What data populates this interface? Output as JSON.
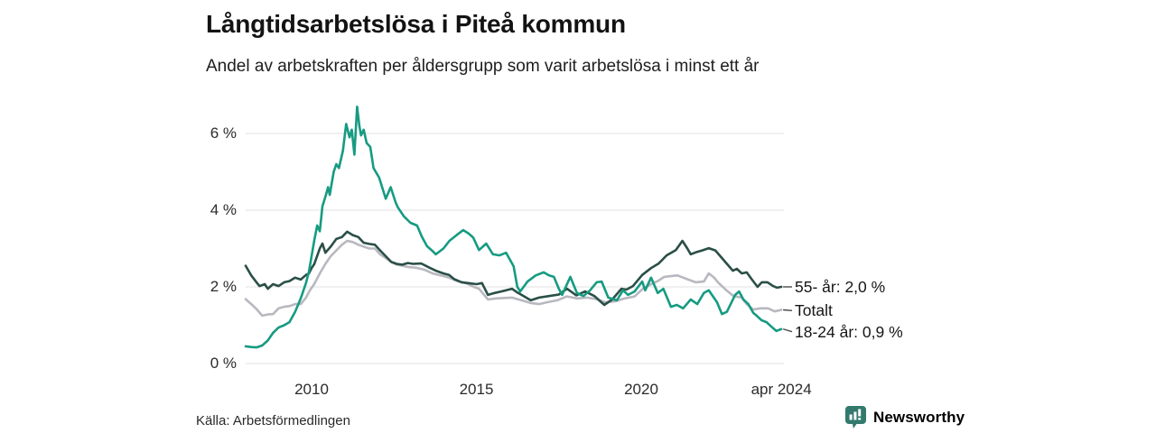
{
  "header": {
    "title": "Långtidsarbetslösa i Piteå kommun",
    "subtitle": "Andel av arbetskraften per åldersgrupp som varit arbetslösa i minst ett år"
  },
  "chart_data": {
    "type": "line",
    "title": "Långtidsarbetslösa i Piteå kommun",
    "subtitle": "Andel av arbetskraften per åldersgrupp som varit arbetslösa i minst ett år",
    "unit": "% av arbetskraften",
    "grid": "horizontal",
    "legend_position": "right-of-line-ends",
    "x_axis": {
      "range": [
        2008.0,
        2024.33
      ],
      "ticks": [
        {
          "label": "2010",
          "t": 2010.0
        },
        {
          "label": "2015",
          "t": 2015.0
        },
        {
          "label": "2020",
          "t": 2020.0
        },
        {
          "label": "apr 2024",
          "t": 2024.25
        }
      ]
    },
    "y_axis": {
      "range": [
        0,
        6.9
      ],
      "ticks": [
        {
          "label": "0 %",
          "v": 0
        },
        {
          "label": "2 %",
          "v": 2
        },
        {
          "label": "4 %",
          "v": 4
        },
        {
          "label": "6 %",
          "v": 6
        }
      ]
    },
    "series": [
      {
        "name": "Totalt",
        "color": "#b8b8c0",
        "end_label": "Totalt",
        "end_value": 1.4,
        "label_anchor_value": 1.38,
        "points": [
          [
            2008.0,
            1.68
          ],
          [
            2008.17,
            1.55
          ],
          [
            2008.33,
            1.42
          ],
          [
            2008.5,
            1.25
          ],
          [
            2008.67,
            1.28
          ],
          [
            2008.83,
            1.29
          ],
          [
            2009.0,
            1.44
          ],
          [
            2009.17,
            1.48
          ],
          [
            2009.33,
            1.5
          ],
          [
            2009.5,
            1.55
          ],
          [
            2009.67,
            1.55
          ],
          [
            2009.83,
            1.72
          ],
          [
            2009.95,
            1.91
          ],
          [
            2010.08,
            2.07
          ],
          [
            2010.25,
            2.35
          ],
          [
            2010.42,
            2.6
          ],
          [
            2010.58,
            2.8
          ],
          [
            2010.75,
            2.95
          ],
          [
            2010.92,
            3.1
          ],
          [
            2011.08,
            3.2
          ],
          [
            2011.25,
            3.17
          ],
          [
            2011.42,
            3.1
          ],
          [
            2011.58,
            3.05
          ],
          [
            2011.75,
            3.0
          ],
          [
            2011.92,
            3.0
          ],
          [
            2012.08,
            2.85
          ],
          [
            2012.25,
            2.75
          ],
          [
            2012.42,
            2.65
          ],
          [
            2012.58,
            2.58
          ],
          [
            2012.75,
            2.55
          ],
          [
            2012.92,
            2.52
          ],
          [
            2013.17,
            2.5
          ],
          [
            2013.42,
            2.45
          ],
          [
            2013.67,
            2.35
          ],
          [
            2013.92,
            2.3
          ],
          [
            2014.17,
            2.24
          ],
          [
            2014.42,
            2.15
          ],
          [
            2014.67,
            2.1
          ],
          [
            2014.92,
            2.0
          ],
          [
            2015.08,
            1.95
          ],
          [
            2015.35,
            1.67
          ],
          [
            2015.6,
            1.7
          ],
          [
            2015.85,
            1.71
          ],
          [
            2016.08,
            1.72
          ],
          [
            2016.37,
            1.65
          ],
          [
            2016.65,
            1.58
          ],
          [
            2016.9,
            1.55
          ],
          [
            2017.15,
            1.6
          ],
          [
            2017.45,
            1.65
          ],
          [
            2017.75,
            1.75
          ],
          [
            2018.05,
            1.7
          ],
          [
            2018.35,
            1.72
          ],
          [
            2018.65,
            1.68
          ],
          [
            2018.9,
            1.6
          ],
          [
            2019.2,
            1.62
          ],
          [
            2019.5,
            1.7
          ],
          [
            2019.8,
            1.75
          ],
          [
            2020.05,
            1.95
          ],
          [
            2020.3,
            2.07
          ],
          [
            2020.5,
            2.15
          ],
          [
            2020.7,
            2.26
          ],
          [
            2020.9,
            2.28
          ],
          [
            2021.1,
            2.3
          ],
          [
            2021.4,
            2.2
          ],
          [
            2021.65,
            2.12
          ],
          [
            2021.9,
            2.14
          ],
          [
            2022.05,
            2.35
          ],
          [
            2022.2,
            2.25
          ],
          [
            2022.35,
            2.1
          ],
          [
            2022.6,
            1.9
          ],
          [
            2022.8,
            1.76
          ],
          [
            2023.05,
            1.72
          ],
          [
            2023.2,
            1.55
          ],
          [
            2023.4,
            1.41
          ],
          [
            2023.6,
            1.44
          ],
          [
            2023.85,
            1.44
          ],
          [
            2024.05,
            1.36
          ],
          [
            2024.25,
            1.4
          ]
        ]
      },
      {
        "name": "55- år",
        "color": "#2a4f47",
        "end_label": "55- år: 2,0 %",
        "end_value": 2.0,
        "label_anchor_value": 2.0,
        "points": [
          [
            2008.0,
            2.55
          ],
          [
            2008.17,
            2.3
          ],
          [
            2008.33,
            2.12
          ],
          [
            2008.42,
            2.02
          ],
          [
            2008.58,
            2.07
          ],
          [
            2008.67,
            1.95
          ],
          [
            2008.83,
            2.07
          ],
          [
            2009.0,
            2.02
          ],
          [
            2009.17,
            2.12
          ],
          [
            2009.33,
            2.15
          ],
          [
            2009.5,
            2.24
          ],
          [
            2009.67,
            2.19
          ],
          [
            2009.83,
            2.31
          ],
          [
            2009.92,
            2.35
          ],
          [
            2010.0,
            2.49
          ],
          [
            2010.08,
            2.59
          ],
          [
            2010.25,
            3.0
          ],
          [
            2010.33,
            3.13
          ],
          [
            2010.42,
            2.89
          ],
          [
            2010.58,
            3.05
          ],
          [
            2010.75,
            3.25
          ],
          [
            2010.92,
            3.3
          ],
          [
            2011.08,
            3.44
          ],
          [
            2011.25,
            3.35
          ],
          [
            2011.42,
            3.3
          ],
          [
            2011.58,
            3.15
          ],
          [
            2011.75,
            3.12
          ],
          [
            2011.92,
            3.1
          ],
          [
            2012.08,
            2.95
          ],
          [
            2012.25,
            2.8
          ],
          [
            2012.42,
            2.65
          ],
          [
            2012.58,
            2.6
          ],
          [
            2012.75,
            2.58
          ],
          [
            2012.92,
            2.62
          ],
          [
            2013.08,
            2.6
          ],
          [
            2013.33,
            2.61
          ],
          [
            2013.58,
            2.5
          ],
          [
            2013.77,
            2.42
          ],
          [
            2014.0,
            2.35
          ],
          [
            2014.17,
            2.31
          ],
          [
            2014.33,
            2.2
          ],
          [
            2014.55,
            2.12
          ],
          [
            2014.75,
            2.1
          ],
          [
            2015.0,
            2.07
          ],
          [
            2015.17,
            2.1
          ],
          [
            2015.35,
            1.79
          ],
          [
            2015.55,
            1.84
          ],
          [
            2015.75,
            1.88
          ],
          [
            2015.9,
            1.91
          ],
          [
            2016.08,
            1.95
          ],
          [
            2016.25,
            1.85
          ],
          [
            2016.37,
            1.79
          ],
          [
            2016.55,
            1.7
          ],
          [
            2016.65,
            1.65
          ],
          [
            2016.9,
            1.72
          ],
          [
            2017.2,
            1.76
          ],
          [
            2017.5,
            1.8
          ],
          [
            2017.75,
            1.95
          ],
          [
            2018.03,
            1.78
          ],
          [
            2018.3,
            1.88
          ],
          [
            2018.58,
            1.76
          ],
          [
            2018.88,
            1.53
          ],
          [
            2019.12,
            1.67
          ],
          [
            2019.4,
            1.95
          ],
          [
            2019.55,
            1.93
          ],
          [
            2019.75,
            2.02
          ],
          [
            2020.03,
            2.31
          ],
          [
            2020.3,
            2.49
          ],
          [
            2020.53,
            2.61
          ],
          [
            2020.77,
            2.82
          ],
          [
            2021.05,
            2.96
          ],
          [
            2021.25,
            3.2
          ],
          [
            2021.4,
            3.0
          ],
          [
            2021.5,
            2.85
          ],
          [
            2021.65,
            2.9
          ],
          [
            2021.85,
            2.95
          ],
          [
            2022.05,
            3.01
          ],
          [
            2022.25,
            2.95
          ],
          [
            2022.4,
            2.8
          ],
          [
            2022.6,
            2.6
          ],
          [
            2022.78,
            2.42
          ],
          [
            2022.9,
            2.47
          ],
          [
            2023.05,
            2.35
          ],
          [
            2023.2,
            2.38
          ],
          [
            2023.35,
            2.2
          ],
          [
            2023.53,
            2.0
          ],
          [
            2023.66,
            2.12
          ],
          [
            2023.83,
            2.12
          ],
          [
            2024.0,
            2.02
          ],
          [
            2024.12,
            1.98
          ],
          [
            2024.25,
            2.0
          ]
        ]
      },
      {
        "name": "18-24 år",
        "color": "#169b81",
        "end_label": "18-24 år: 0,9 %",
        "end_value": 0.9,
        "label_anchor_value": 0.83,
        "points": [
          [
            2008.0,
            0.45
          ],
          [
            2008.17,
            0.43
          ],
          [
            2008.33,
            0.42
          ],
          [
            2008.5,
            0.47
          ],
          [
            2008.67,
            0.6
          ],
          [
            2008.83,
            0.8
          ],
          [
            2009.0,
            0.94
          ],
          [
            2009.17,
            1.0
          ],
          [
            2009.33,
            1.08
          ],
          [
            2009.5,
            1.35
          ],
          [
            2009.67,
            1.7
          ],
          [
            2009.83,
            2.1
          ],
          [
            2009.92,
            2.4
          ],
          [
            2010.0,
            2.8
          ],
          [
            2010.08,
            3.2
          ],
          [
            2010.17,
            3.6
          ],
          [
            2010.25,
            3.45
          ],
          [
            2010.33,
            4.1
          ],
          [
            2010.42,
            4.35
          ],
          [
            2010.5,
            4.6
          ],
          [
            2010.55,
            4.4
          ],
          [
            2010.67,
            5.0
          ],
          [
            2010.75,
            5.2
          ],
          [
            2010.83,
            5.1
          ],
          [
            2010.95,
            5.55
          ],
          [
            2011.05,
            6.25
          ],
          [
            2011.15,
            5.9
          ],
          [
            2011.22,
            6.1
          ],
          [
            2011.3,
            5.45
          ],
          [
            2011.38,
            6.7
          ],
          [
            2011.45,
            6.2
          ],
          [
            2011.5,
            5.95
          ],
          [
            2011.58,
            6.1
          ],
          [
            2011.67,
            5.75
          ],
          [
            2011.78,
            5.65
          ],
          [
            2011.88,
            5.1
          ],
          [
            2012.05,
            4.85
          ],
          [
            2012.25,
            4.3
          ],
          [
            2012.4,
            4.6
          ],
          [
            2012.55,
            4.2
          ],
          [
            2012.62,
            4.07
          ],
          [
            2012.8,
            3.84
          ],
          [
            2013.0,
            3.67
          ],
          [
            2013.2,
            3.6
          ],
          [
            2013.35,
            3.3
          ],
          [
            2013.5,
            3.06
          ],
          [
            2013.65,
            2.95
          ],
          [
            2013.77,
            2.85
          ],
          [
            2014.0,
            3.0
          ],
          [
            2014.18,
            3.2
          ],
          [
            2014.4,
            3.35
          ],
          [
            2014.6,
            3.48
          ],
          [
            2014.75,
            3.4
          ],
          [
            2014.9,
            3.29
          ],
          [
            2015.08,
            2.96
          ],
          [
            2015.3,
            3.13
          ],
          [
            2015.5,
            2.85
          ],
          [
            2015.7,
            2.82
          ],
          [
            2015.9,
            2.89
          ],
          [
            2016.13,
            2.54
          ],
          [
            2016.24,
            2.0
          ],
          [
            2016.33,
            1.88
          ],
          [
            2016.55,
            2.14
          ],
          [
            2016.8,
            2.3
          ],
          [
            2017.04,
            2.38
          ],
          [
            2017.2,
            2.3
          ],
          [
            2017.35,
            2.26
          ],
          [
            2017.5,
            1.95
          ],
          [
            2017.6,
            1.79
          ],
          [
            2017.85,
            2.26
          ],
          [
            2018.05,
            1.84
          ],
          [
            2018.25,
            1.76
          ],
          [
            2018.45,
            1.91
          ],
          [
            2018.65,
            2.12
          ],
          [
            2018.8,
            2.14
          ],
          [
            2019.0,
            1.72
          ],
          [
            2019.26,
            1.65
          ],
          [
            2019.45,
            1.91
          ],
          [
            2019.6,
            1.79
          ],
          [
            2019.8,
            1.88
          ],
          [
            2020.03,
            2.14
          ],
          [
            2020.12,
            1.91
          ],
          [
            2020.3,
            2.24
          ],
          [
            2020.5,
            1.84
          ],
          [
            2020.67,
            1.95
          ],
          [
            2020.9,
            1.48
          ],
          [
            2021.08,
            1.53
          ],
          [
            2021.27,
            1.44
          ],
          [
            2021.5,
            1.67
          ],
          [
            2021.7,
            1.55
          ],
          [
            2021.9,
            1.84
          ],
          [
            2022.05,
            1.91
          ],
          [
            2022.3,
            1.6
          ],
          [
            2022.45,
            1.29
          ],
          [
            2022.6,
            1.35
          ],
          [
            2022.85,
            1.79
          ],
          [
            2022.97,
            1.88
          ],
          [
            2023.1,
            1.67
          ],
          [
            2023.25,
            1.55
          ],
          [
            2023.4,
            1.32
          ],
          [
            2023.5,
            1.25
          ],
          [
            2023.65,
            1.13
          ],
          [
            2023.8,
            1.08
          ],
          [
            2023.95,
            0.96
          ],
          [
            2024.1,
            0.85
          ],
          [
            2024.25,
            0.9
          ]
        ]
      }
    ]
  },
  "footer": {
    "source": "Källa: Arbetsförmedlingen",
    "brand": "Newsworthy"
  },
  "colors": {
    "grid": "#e0e0e0",
    "axis_text": "#2b2b2b",
    "connector": "#4a4a4a",
    "brand_teal": "#33796d",
    "title_text": "#131313"
  }
}
